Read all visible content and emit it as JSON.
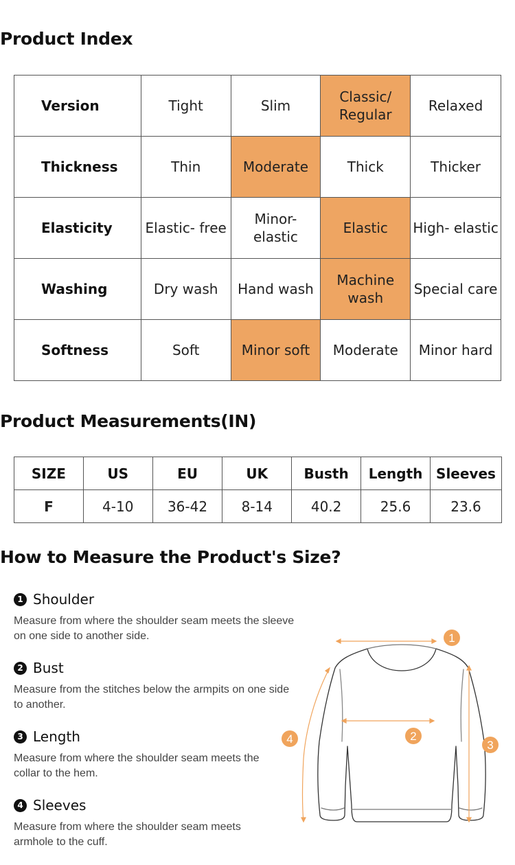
{
  "index": {
    "title": "Product Index",
    "rows": [
      {
        "label": "Version",
        "cells": [
          "Tight",
          "Slim",
          "Classic/ Regular",
          "Relaxed"
        ],
        "highlight": 2
      },
      {
        "label": "Thickness",
        "cells": [
          "Thin",
          "Moderate",
          "Thick",
          "Thicker"
        ],
        "highlight": 1
      },
      {
        "label": "Elasticity",
        "cells": [
          "Elastic- free",
          "Minor- elastic",
          "Elastic",
          "High- elastic"
        ],
        "highlight": 2
      },
      {
        "label": "Washing",
        "cells": [
          "Dry wash",
          "Hand wash",
          "Machine wash",
          "Special care"
        ],
        "highlight": 2
      },
      {
        "label": "Softness",
        "cells": [
          "Soft",
          "Minor soft",
          "Moderate",
          "Minor hard"
        ],
        "highlight": 1
      }
    ],
    "highlight_color": "#eea562"
  },
  "measurements": {
    "title": "Product Measurements(IN)",
    "headers": [
      "SIZE",
      "US",
      "EU",
      "UK",
      "Busth",
      "Length",
      "Sleeves"
    ],
    "rows": [
      [
        "F",
        "4-10",
        "36-42",
        "8-14",
        "40.2",
        "25.6",
        "23.6"
      ]
    ]
  },
  "howto": {
    "title": "How to Measure the Product's Size?",
    "items": [
      {
        "num": "1",
        "title": "Shoulder",
        "desc": "Measure from where the shoulder seam meets the sleeve on one side to another side."
      },
      {
        "num": "2",
        "title": "Bust",
        "desc": "Measure from the stitches below the armpits on one side to another."
      },
      {
        "num": "3",
        "title": "Length",
        "desc": "Measure from where the shoulder seam meets the collar to the hem."
      },
      {
        "num": "4",
        "title": "Sleeves",
        "desc": "Measure from where the shoulder seam meets armhole to the cuff."
      }
    ],
    "diagram": {
      "markers": [
        "1",
        "2",
        "3",
        "4"
      ],
      "accent": "#f0a45c",
      "icon": "sweater-icon"
    }
  }
}
